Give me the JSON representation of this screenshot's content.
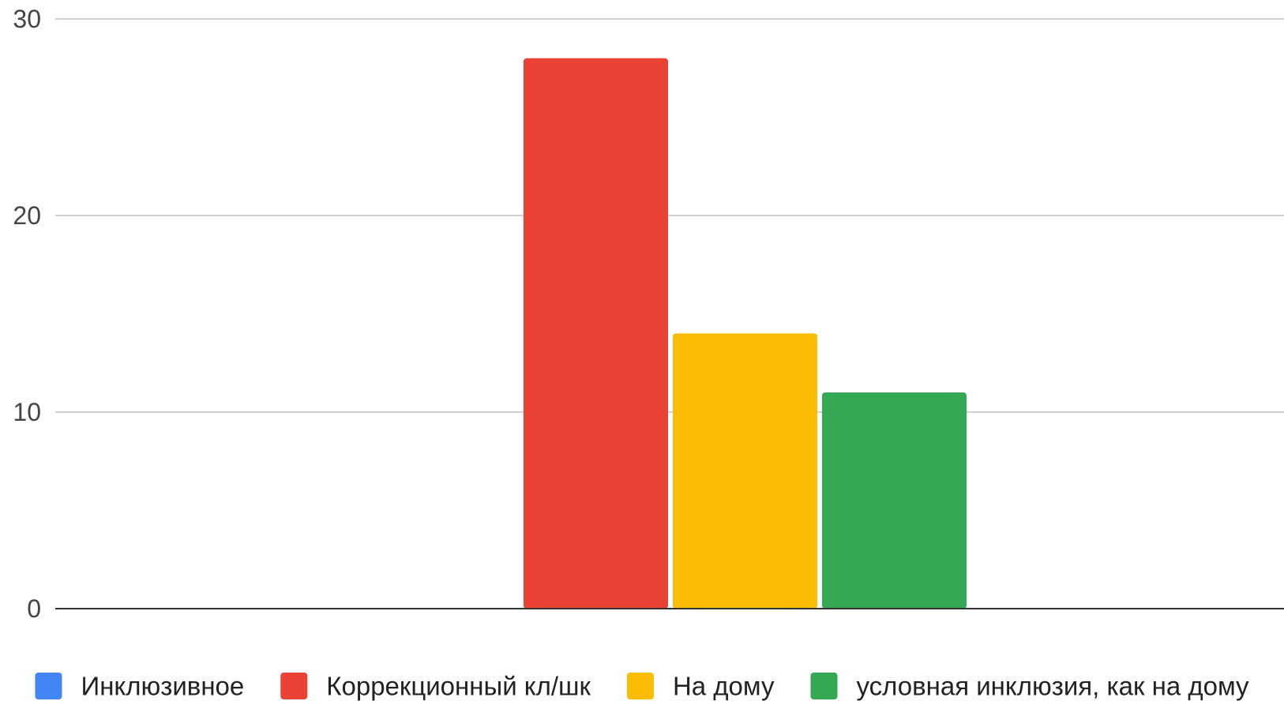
{
  "chart_data": {
    "type": "bar",
    "title": "",
    "xlabel": "",
    "ylabel": "",
    "ylim": [
      0,
      30
    ],
    "yticks": [
      0,
      10,
      20,
      30
    ],
    "grid": true,
    "legend_position": "bottom",
    "categories": [
      ""
    ],
    "series": [
      {
        "name": "Инклюзивное",
        "color": "#4285F4",
        "values": [
          0
        ]
      },
      {
        "name": "Коррекционный кл/шк",
        "color": "#EA4335",
        "values": [
          28
        ]
      },
      {
        "name": "На дому",
        "color": "#FBBC04",
        "values": [
          14
        ]
      },
      {
        "name": "условная инклюзия, как на дому",
        "color": "#34A853",
        "values": [
          11
        ]
      }
    ]
  }
}
